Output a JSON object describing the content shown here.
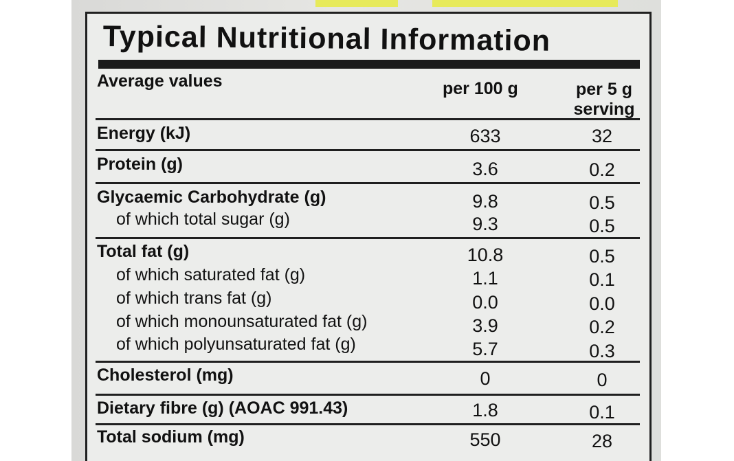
{
  "panel": {
    "title": "Typical Nutritional Information",
    "header": {
      "average_values": "Average values",
      "per_100g": "per 100 g",
      "per_serving": "per 5 g serving"
    },
    "rows": [
      {
        "label": "Energy (kJ)",
        "per_100g": "633",
        "per_serving": "32"
      },
      {
        "label": "Protein (g)",
        "per_100g": "3.6",
        "per_serving": "0.2"
      },
      {
        "label": "Glycaemic Carbohydrate (g)",
        "per_100g": "9.8",
        "per_serving": "0.5"
      },
      {
        "label": "of which total sugar (g)",
        "per_100g": "9.3",
        "per_serving": "0.5"
      },
      {
        "label": "Total fat (g)",
        "per_100g": "10.8",
        "per_serving": "0.5"
      },
      {
        "label": "of which saturated fat (g)",
        "per_100g": "1.1",
        "per_serving": "0.1"
      },
      {
        "label": "of which trans fat (g)",
        "per_100g": "0.0",
        "per_serving": "0.0"
      },
      {
        "label": "of which monounsaturated fat (g)",
        "per_100g": "3.9",
        "per_serving": "0.2"
      },
      {
        "label": "of which polyunsaturated fat (g)",
        "per_100g": "5.7",
        "per_serving": "0.3"
      },
      {
        "label": "Cholesterol (mg)",
        "per_100g": "0",
        "per_serving": "0"
      },
      {
        "label": "Dietary fibre (g) (AOAC 991.43)",
        "per_100g": "1.8",
        "per_serving": "0.1"
      },
      {
        "label": "Total sodium (mg)",
        "per_100g": "550",
        "per_serving": "28"
      }
    ]
  }
}
